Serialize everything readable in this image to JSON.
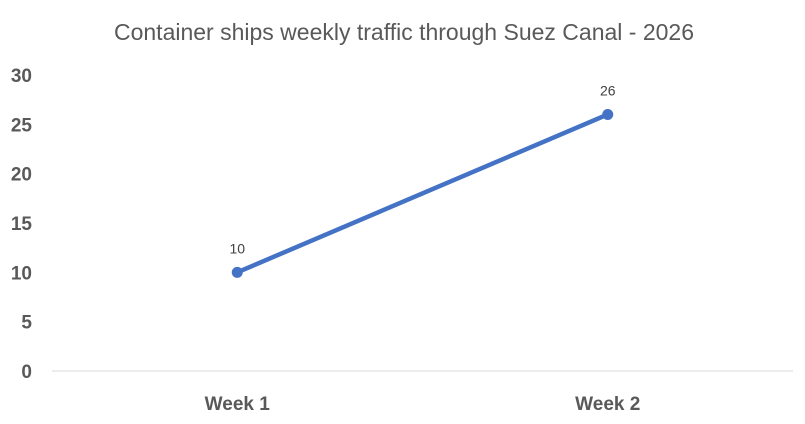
{
  "chart_data": {
    "type": "line",
    "title": "Container ships weekly traffic through Suez Canal - 2026",
    "xlabel": "",
    "ylabel": "",
    "categories": [
      "Week 1",
      "Week 2"
    ],
    "series": [
      {
        "values": [
          10,
          26
        ],
        "color": "#4472c4",
        "data_labels": [
          "10",
          "26"
        ]
      }
    ],
    "ylim": [
      0,
      30
    ],
    "yticks": [
      0,
      5,
      10,
      15,
      20,
      25,
      30
    ],
    "ytick_labels": [
      "0",
      "5",
      "10",
      "15",
      "20",
      "25",
      "30"
    ],
    "grid": false,
    "legend": "none"
  }
}
